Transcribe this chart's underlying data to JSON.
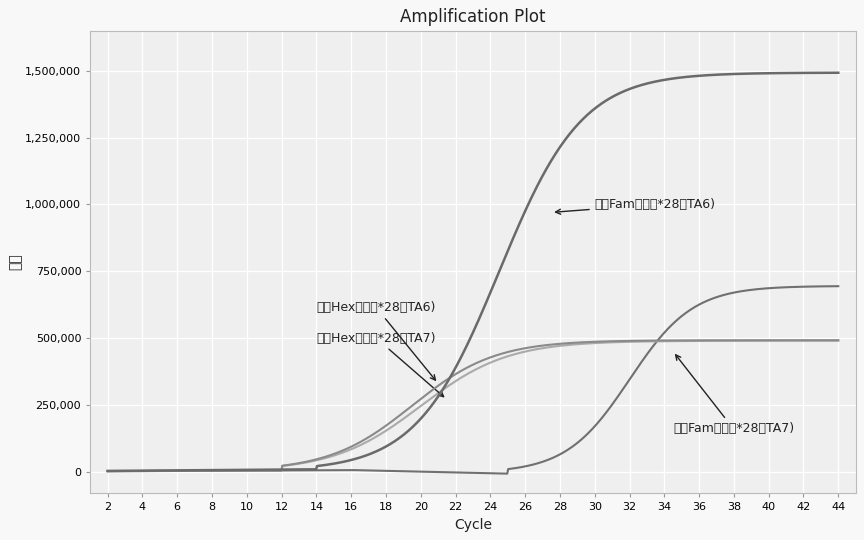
{
  "title": "Amplification Plot",
  "xlabel": "Cycle",
  "ylabel": "荧光",
  "xlim": [
    1,
    45
  ],
  "ylim": [
    -80000,
    1650000
  ],
  "xticks": [
    2,
    4,
    6,
    8,
    10,
    12,
    14,
    16,
    18,
    20,
    22,
    24,
    26,
    28,
    30,
    32,
    34,
    36,
    38,
    40,
    42,
    44
  ],
  "yticks": [
    0,
    250000,
    500000,
    750000,
    1000000,
    1250000,
    1500000
  ],
  "ytick_labels": [
    "0",
    "250,000",
    "500,000",
    "750,000",
    "1,000,000",
    "1,250,000",
    "1,500,000"
  ],
  "bg_color": "#f0eff0",
  "grid_color": "#ffffff",
  "fam_ta6_color": "#6a6a6a",
  "hex_ta6_color": "#8a8a8a",
  "hex_ta7_color": "#aaaaaa",
  "fam_ta7_color": "#707070",
  "ann1_text": "阳性Fam通道（*28型TA6)",
  "ann2_text": "阳性Hex通道（*28型TA6)",
  "ann3_text": "阴性Hex通道（*28型TA7)",
  "ann4_text": "阴性Fam通道（*28型TA7)"
}
